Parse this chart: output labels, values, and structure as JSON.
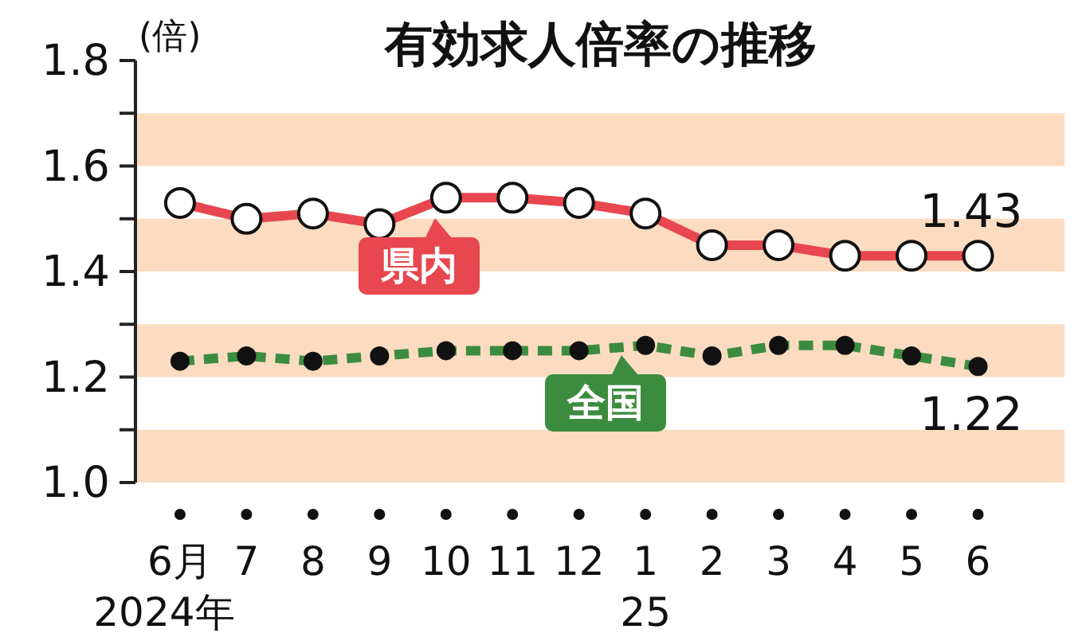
{
  "chart_data": {
    "type": "line",
    "title": "有効求人倍率の推移",
    "ylabel": "(倍)",
    "categories": [
      "6月\n2024年",
      "7",
      "8",
      "9",
      "10",
      "11",
      "12",
      "1\n25",
      "2",
      "3",
      "4",
      "5",
      "6"
    ],
    "series": [
      {
        "name": "県内",
        "color": "#e8474f",
        "line_style": "solid",
        "marker": "circle",
        "values": [
          1.53,
          1.5,
          1.51,
          1.49,
          1.54,
          1.54,
          1.53,
          1.51,
          1.45,
          1.45,
          1.43,
          1.43,
          1.43
        ],
        "value_labels": [
          null,
          null,
          null,
          null,
          null,
          null,
          null,
          null,
          null,
          null,
          null,
          null,
          "1.43"
        ]
      },
      {
        "name": "全国",
        "color": "#3c8c3f",
        "line_style": "dashed",
        "marker": "circle",
        "values": [
          1.23,
          1.24,
          1.23,
          1.24,
          1.25,
          1.25,
          1.25,
          1.26,
          1.24,
          1.26,
          1.26,
          1.24,
          1.22
        ],
        "value_labels": [
          null,
          null,
          null,
          null,
          null,
          null,
          null,
          null,
          null,
          null,
          null,
          null,
          "1.22"
        ]
      }
    ],
    "ylim": [
      1.0,
      1.8
    ],
    "yticks": [
      {
        "value": 1.0,
        "label": "1.0"
      },
      {
        "value": 1.1,
        "label": null
      },
      {
        "value": 1.2,
        "label": "1.2"
      },
      {
        "value": 1.3,
        "label": null
      },
      {
        "value": 1.4,
        "label": "1.4"
      },
      {
        "value": 1.5,
        "label": null
      },
      {
        "value": 1.6,
        "label": "1.6"
      },
      {
        "value": 1.7,
        "label": null
      },
      {
        "value": 1.8,
        "label": "1.8"
      }
    ],
    "bands": [
      {
        "axis": "y",
        "from": 1.0,
        "to": 1.1,
        "color": "#fbdcc0"
      },
      {
        "axis": "y",
        "from": 1.2,
        "to": 1.3,
        "color": "#fbdcc0"
      },
      {
        "axis": "y",
        "from": 1.4,
        "to": 1.5,
        "color": "#fbdcc0"
      },
      {
        "axis": "y",
        "from": 1.6,
        "to": 1.7,
        "color": "#fbdcc0"
      }
    ],
    "grid": false,
    "legend": "center"
  }
}
